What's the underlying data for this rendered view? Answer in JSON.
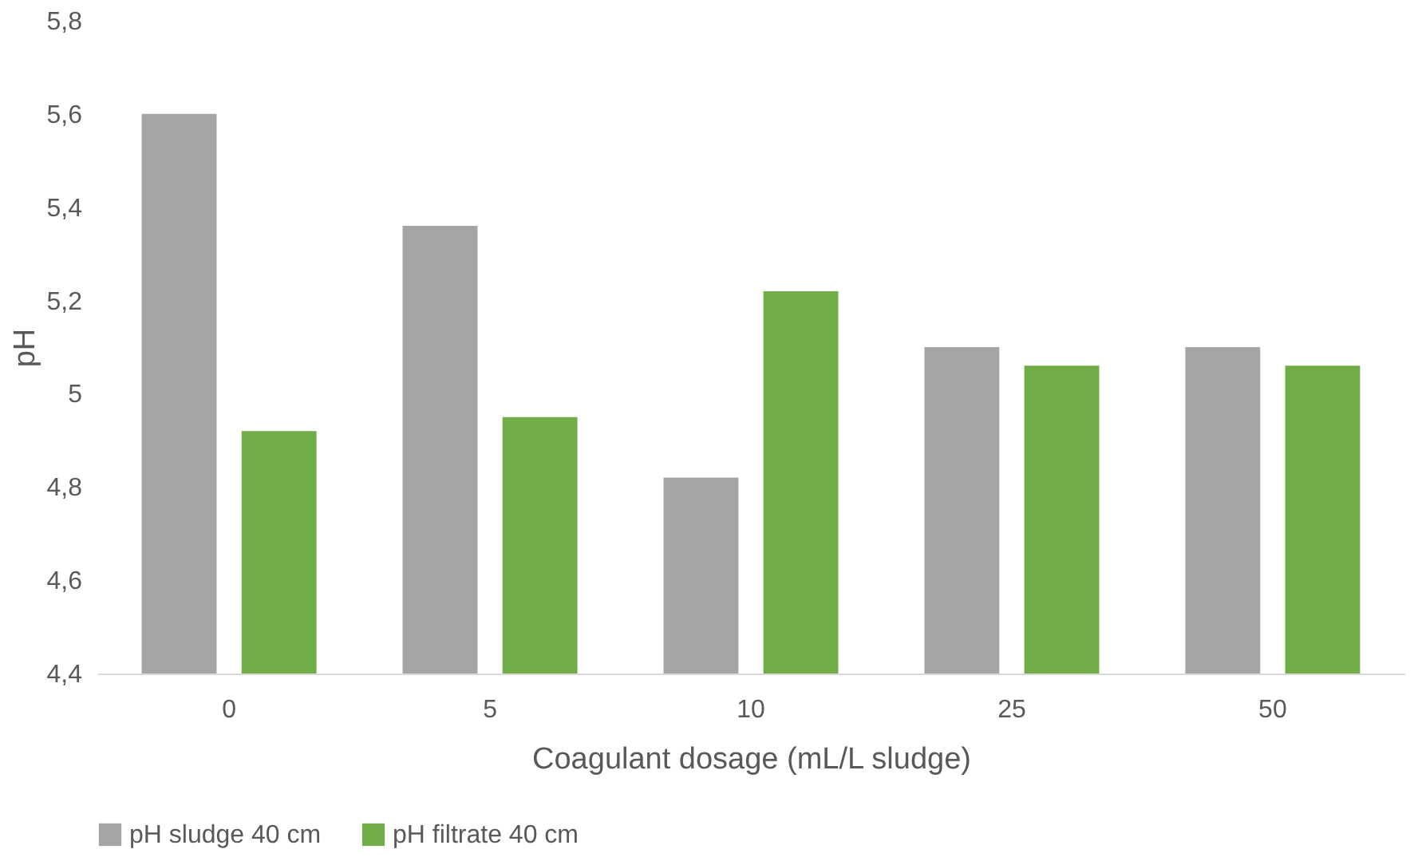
{
  "chart_data": {
    "type": "bar",
    "xlabel": "Coagulant dosage (mL/L sludge)",
    "ylabel": "pH",
    "categories": [
      "0",
      "5",
      "10",
      "25",
      "50"
    ],
    "series": [
      {
        "name": "pH sludge 40 cm",
        "color": "#a5a5a5",
        "values": [
          5.6,
          5.36,
          4.82,
          5.1,
          5.1
        ]
      },
      {
        "name": "pH filtrate 40 cm",
        "color": "#70ad47",
        "values": [
          4.92,
          4.95,
          5.22,
          5.06,
          5.06
        ]
      }
    ],
    "ylim": [
      4.4,
      5.8
    ],
    "yticks": [
      {
        "value": 4.4,
        "label": "4,4"
      },
      {
        "value": 4.6,
        "label": "4,6"
      },
      {
        "value": 4.8,
        "label": "4,8"
      },
      5,
      {
        "value": 5.2,
        "label": "5,2"
      },
      {
        "value": 5.4,
        "label": "5,4"
      },
      {
        "value": 5.6,
        "label": "5,6"
      },
      {
        "value": 5.8,
        "label": "5,8"
      }
    ],
    "grid": false,
    "legend": "bottom"
  }
}
